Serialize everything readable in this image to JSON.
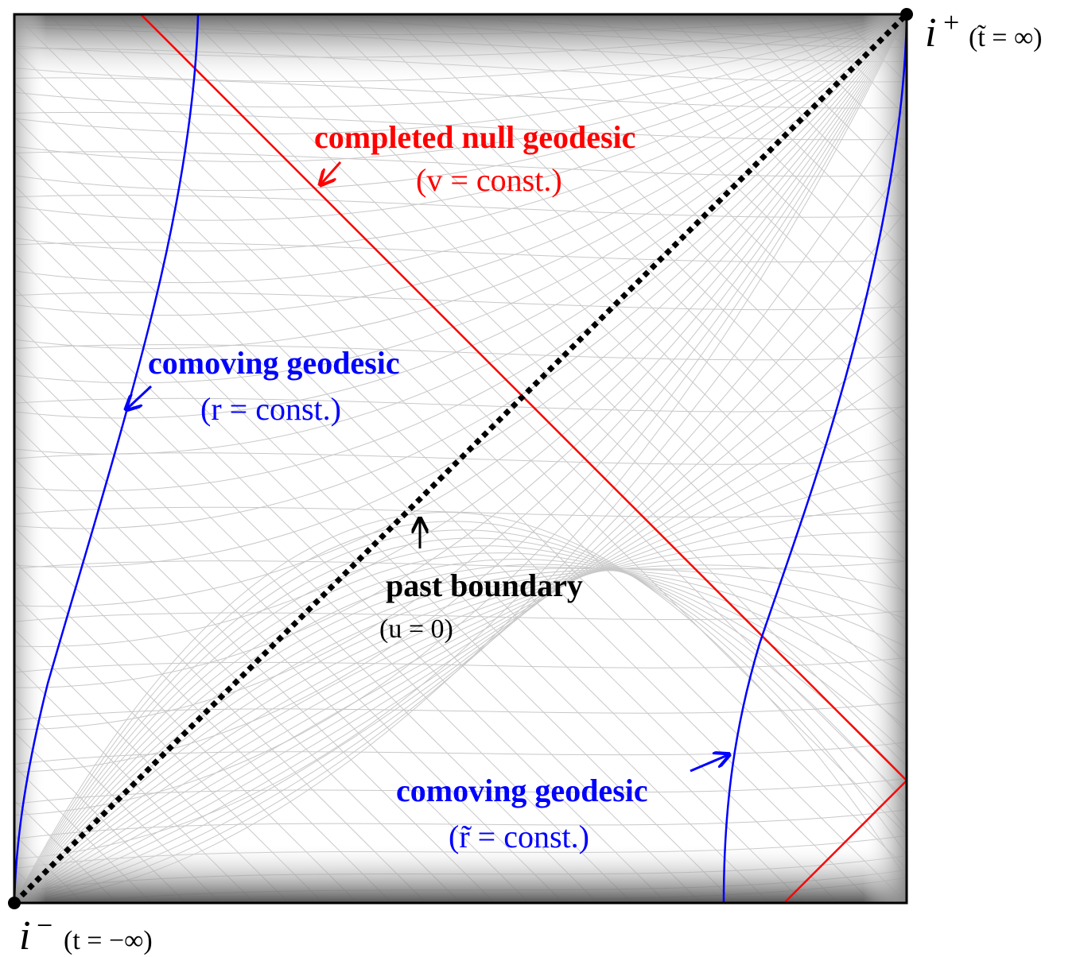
{
  "colors": {
    "frame": "#000000",
    "grid": "#c8c8c8",
    "null_geodesic": "#ff0000",
    "comoving_geodesic": "#0000ff",
    "past_boundary": "#000000"
  },
  "labels": {
    "i_plus_symbol": "i",
    "i_plus_sup": "+",
    "i_plus_note": "(t̃ = ∞)",
    "i_minus_symbol": "i",
    "i_minus_sup": "−",
    "i_minus_note": "(t = −∞)",
    "null_geodesic_title": "completed null geodesic",
    "null_geodesic_cond": "(v = const.)",
    "comoving_left_title": "comoving geodesic",
    "comoving_left_cond": "(r = const.)",
    "comoving_right_title": "comoving geodesic",
    "comoving_right_cond": "(r̃ = const.)",
    "past_boundary_title": "past boundary",
    "past_boundary_cond": "(u = 0)"
  }
}
